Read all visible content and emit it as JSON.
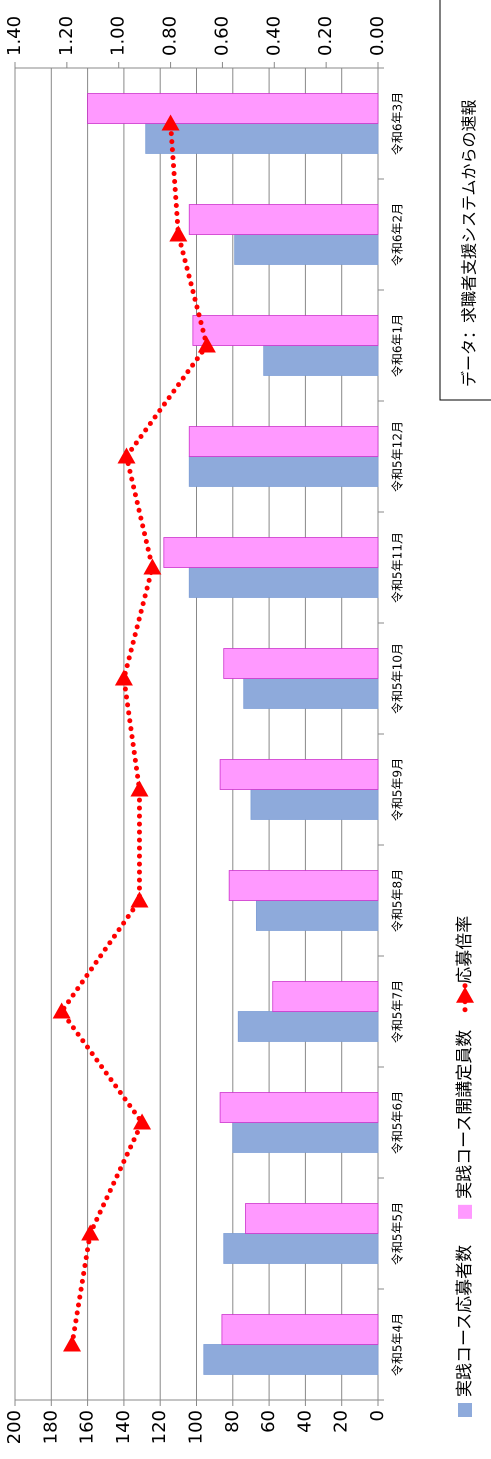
{
  "chart_data": {
    "type": "bar",
    "categories": [
      "令和5年4月",
      "令和5年5月",
      "令和5年6月",
      "令和5年7月",
      "令和5年8月",
      "令和5年9月",
      "令和5年10月",
      "令和5年11月",
      "令和5年12月",
      "令和6年1月",
      "令和6年2月",
      "令和6年3月"
    ],
    "series": [
      {
        "name": "実践コース応募者数",
        "type": "bar",
        "color": "#8eaadb",
        "values": [
          96,
          85,
          80,
          77,
          67,
          70,
          74,
          104,
          104,
          63,
          79,
          128
        ]
      },
      {
        "name": "実践コース開講定員数",
        "type": "bar",
        "color": "#ff99ff",
        "values": [
          86,
          73,
          87,
          58,
          82,
          87,
          85,
          118,
          104,
          102,
          104,
          160
        ]
      },
      {
        "name": "応募倍率",
        "type": "line",
        "axis": "y2",
        "color": "#ff0000",
        "values": [
          1.18,
          1.11,
          0.91,
          1.22,
          0.92,
          0.92,
          0.98,
          0.87,
          0.97,
          0.66,
          0.77,
          0.8
        ]
      }
    ],
    "ylim": [
      0,
      200
    ],
    "yticks": [
      0,
      20,
      40,
      60,
      80,
      100,
      120,
      140,
      160,
      180,
      200
    ],
    "y2lim": [
      0,
      1.4
    ],
    "y2ticks": [
      {
        "value": 0,
        "label": "0.00"
      },
      {
        "value": 0.2,
        "label": "0.20"
      },
      {
        "value": 0.4,
        "label": "0.40"
      },
      {
        "value": 0.6,
        "label": "0.60"
      },
      {
        "value": 0.8,
        "label": "0.80"
      },
      {
        "value": 1,
        "label": "1.00"
      },
      {
        "value": 1.2,
        "label": "1.20"
      },
      {
        "value": 1.4,
        "label": "1.40"
      }
    ],
    "grid": true,
    "note": "データ：求職者支援システムからの速報"
  }
}
